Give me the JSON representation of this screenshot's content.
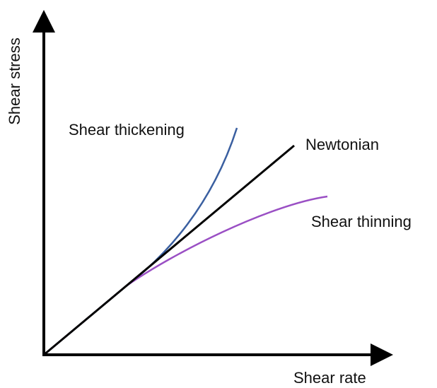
{
  "axes": {
    "x_label": "Shear rate",
    "y_label": "Shear stress"
  },
  "curves": [
    {
      "label": "Shear thickening"
    },
    {
      "label": "Newtonian"
    },
    {
      "label": "Shear thinning"
    }
  ]
}
